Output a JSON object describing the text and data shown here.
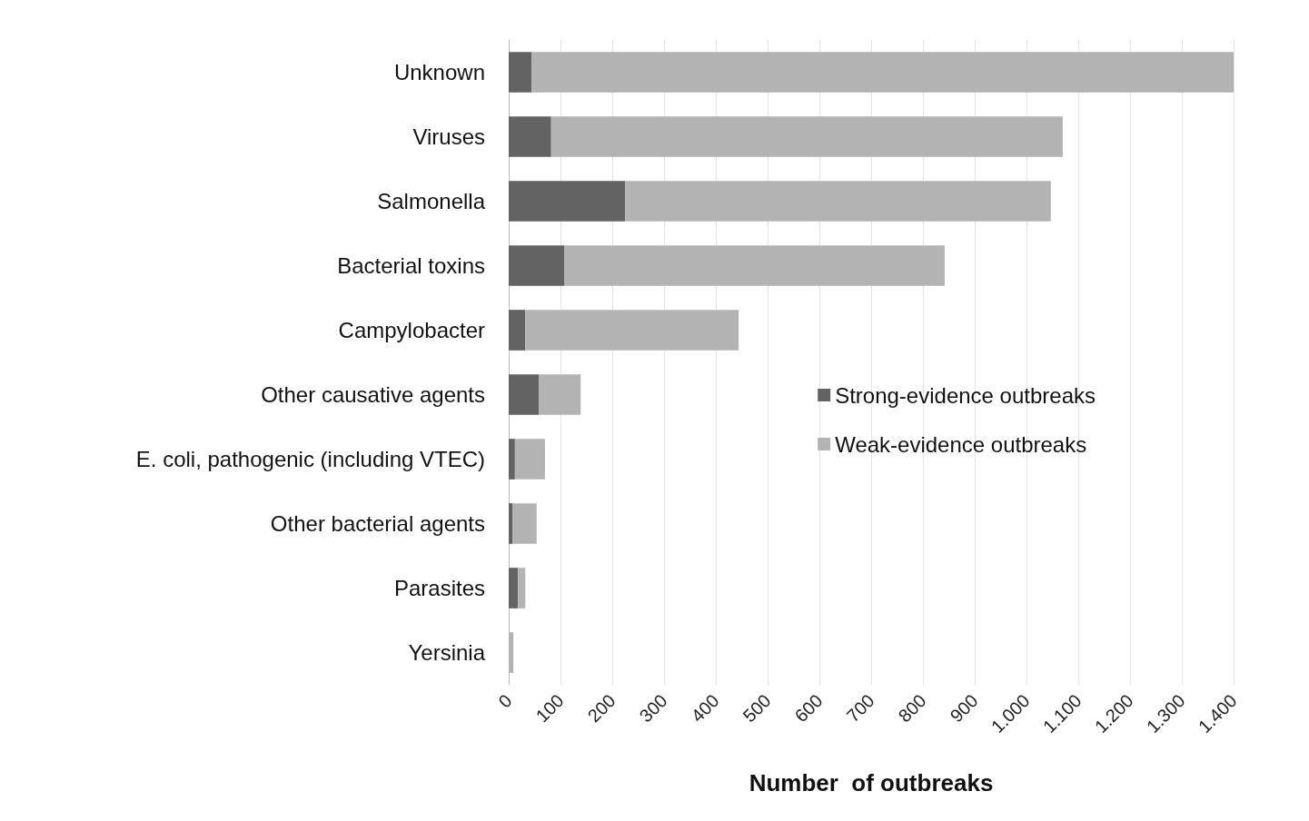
{
  "chart_data": {
    "type": "bar",
    "orientation": "horizontal",
    "stacked": true,
    "xlabel": "Number  of outbreaks",
    "categories": [
      "Unknown",
      "Viruses",
      "Salmonella",
      "Bacterial toxins",
      "Campylobacter",
      "Other causative agents",
      "E. coli, pathogenic (including VTEC)",
      "Other bacterial agents",
      "Parasites",
      "Yersinia"
    ],
    "series": [
      {
        "name": "Strong-evidence outbreaks",
        "color": "#636363",
        "values": [
          44,
          82,
          225,
          107,
          32,
          58,
          12,
          7,
          18,
          0
        ]
      },
      {
        "name": "Weak-evidence outbreaks",
        "color": "#b3b3b3",
        "values": [
          1356,
          988,
          822,
          735,
          412,
          81,
          58,
          47,
          14,
          9
        ]
      }
    ],
    "xlim": [
      0,
      1400
    ],
    "xticks": [
      0,
      100,
      200,
      300,
      400,
      500,
      600,
      700,
      800,
      900,
      {
        "value": 1000,
        "label": "1.000"
      },
      {
        "value": 1100,
        "label": "1.100"
      },
      {
        "value": 1200,
        "label": "1.200"
      },
      {
        "value": 1300,
        "label": "1.300"
      },
      {
        "value": 1400,
        "label": "1.400"
      }
    ],
    "grid": "x",
    "legend": "right"
  }
}
